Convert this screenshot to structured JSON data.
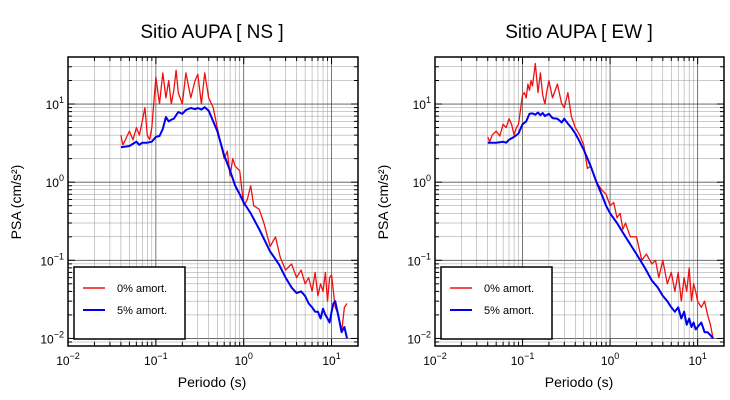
{
  "chart_data": [
    {
      "type": "line",
      "title": "Sitio AUPA [ NS ]",
      "xlabel": "Periodo (s)",
      "ylabel": "PSA (cm/s²)",
      "xscale": "log",
      "yscale": "log",
      "xlim": [
        0.01,
        20
      ],
      "ylim": [
        0.008,
        40
      ],
      "grid": true,
      "legend_placement": "bottom-left",
      "xticks": [
        {
          "base": "10",
          "exp": "−2",
          "value": 0.01
        },
        {
          "base": "10",
          "exp": "−1",
          "value": 0.1
        },
        {
          "base": "10",
          "exp": "0",
          "value": 1
        },
        {
          "base": "10",
          "exp": "1",
          "value": 10
        }
      ],
      "yticks": [
        {
          "base": "10",
          "exp": "−2",
          "value": 0.01
        },
        {
          "base": "10",
          "exp": "−1",
          "value": 0.1
        },
        {
          "base": "10",
          "exp": "0",
          "value": 1
        },
        {
          "base": "10",
          "exp": "1",
          "value": 10
        }
      ],
      "series": [
        {
          "name": "0% amort.",
          "color": "#ee1111",
          "x": [
            0.04,
            0.042,
            0.045,
            0.05,
            0.055,
            0.06,
            0.065,
            0.07,
            0.075,
            0.08,
            0.085,
            0.09,
            0.1,
            0.11,
            0.12,
            0.13,
            0.14,
            0.15,
            0.16,
            0.17,
            0.18,
            0.2,
            0.22,
            0.25,
            0.28,
            0.3,
            0.33,
            0.36,
            0.4,
            0.45,
            0.5,
            0.55,
            0.6,
            0.65,
            0.7,
            0.75,
            0.8,
            0.9,
            1.0,
            1.1,
            1.2,
            1.3,
            1.5,
            1.7,
            2.0,
            2.3,
            2.6,
            3.0,
            3.5,
            4.0,
            4.5,
            5.0,
            5.5,
            6.0,
            6.5,
            7.0,
            7.5,
            8.0,
            8.5,
            9.0,
            9.5,
            10,
            10.5,
            11,
            12,
            13,
            14,
            15
          ],
          "values": [
            4.0,
            3.0,
            3.5,
            4.5,
            3.5,
            5.0,
            4.0,
            6.0,
            9.0,
            4.0,
            3.5,
            5.0,
            22,
            10,
            25,
            12,
            20,
            10,
            15,
            27,
            14,
            10,
            25,
            12,
            20,
            24,
            10,
            25,
            12,
            9.0,
            5.0,
            3.0,
            2.0,
            2.5,
            1.2,
            2.0,
            1.6,
            1.4,
            0.5,
            0.6,
            0.9,
            0.5,
            0.45,
            0.3,
            0.15,
            0.2,
            0.11,
            0.075,
            0.09,
            0.06,
            0.075,
            0.05,
            0.06,
            0.04,
            0.07,
            0.035,
            0.05,
            0.04,
            0.07,
            0.03,
            0.06,
            0.065,
            0.04,
            0.025,
            0.02,
            0.012,
            0.025,
            0.028
          ]
        },
        {
          "name": "5% amort.",
          "color": "#0000ee",
          "x": [
            0.04,
            0.05,
            0.06,
            0.065,
            0.07,
            0.08,
            0.09,
            0.1,
            0.11,
            0.12,
            0.13,
            0.14,
            0.15,
            0.16,
            0.18,
            0.2,
            0.22,
            0.25,
            0.28,
            0.3,
            0.33,
            0.36,
            0.4,
            0.45,
            0.5,
            0.6,
            0.7,
            0.8,
            0.9,
            1.0,
            1.2,
            1.5,
            2.0,
            2.5,
            3.0,
            3.5,
            4.0,
            4.5,
            5.0,
            5.5,
            6.0,
            6.5,
            7.0,
            7.5,
            8.0,
            8.5,
            9.0,
            9.5,
            10,
            10.5,
            11,
            12,
            13,
            14,
            15
          ],
          "values": [
            2.8,
            2.9,
            3.3,
            3.0,
            3.2,
            3.2,
            3.3,
            3.8,
            3.9,
            4.8,
            6.8,
            6.0,
            6.3,
            6.5,
            7.9,
            7.5,
            8.4,
            8.9,
            8.6,
            8.9,
            8.5,
            9.1,
            8.2,
            6.0,
            4.5,
            2.2,
            1.4,
            0.9,
            0.7,
            0.55,
            0.4,
            0.25,
            0.13,
            0.09,
            0.06,
            0.045,
            0.038,
            0.04,
            0.035,
            0.028,
            0.025,
            0.022,
            0.022,
            0.018,
            0.024,
            0.02,
            0.018,
            0.016,
            0.022,
            0.028,
            0.03,
            0.019,
            0.012,
            0.014,
            0.01
          ]
        }
      ]
    },
    {
      "type": "line",
      "title": "Sitio AUPA [ EW ]",
      "xlabel": "Periodo (s)",
      "ylabel": "PSA (cm/s²)",
      "xscale": "log",
      "yscale": "log",
      "xlim": [
        0.01,
        20
      ],
      "ylim": [
        0.008,
        40
      ],
      "grid": true,
      "legend_placement": "bottom-left",
      "xticks": [
        {
          "base": "10",
          "exp": "−2",
          "value": 0.01
        },
        {
          "base": "10",
          "exp": "−1",
          "value": 0.1
        },
        {
          "base": "10",
          "exp": "0",
          "value": 1
        },
        {
          "base": "10",
          "exp": "1",
          "value": 10
        }
      ],
      "yticks": [
        {
          "base": "10",
          "exp": "−2",
          "value": 0.01
        },
        {
          "base": "10",
          "exp": "−1",
          "value": 0.1
        },
        {
          "base": "10",
          "exp": "0",
          "value": 1
        },
        {
          "base": "10",
          "exp": "1",
          "value": 10
        }
      ],
      "series": [
        {
          "name": "0% amort.",
          "color": "#ee1111",
          "x": [
            0.04,
            0.042,
            0.045,
            0.05,
            0.055,
            0.06,
            0.065,
            0.07,
            0.075,
            0.08,
            0.085,
            0.09,
            0.1,
            0.105,
            0.11,
            0.115,
            0.12,
            0.125,
            0.13,
            0.14,
            0.15,
            0.16,
            0.17,
            0.18,
            0.19,
            0.2,
            0.22,
            0.25,
            0.28,
            0.3,
            0.33,
            0.36,
            0.4,
            0.45,
            0.5,
            0.55,
            0.6,
            0.7,
            0.8,
            0.9,
            1.0,
            1.1,
            1.2,
            1.3,
            1.4,
            1.5,
            1.7,
            2.0,
            2.3,
            2.6,
            3.0,
            3.3,
            3.6,
            4.0,
            4.5,
            5.0,
            5.5,
            6.0,
            6.5,
            7.0,
            7.5,
            8.0,
            8.5,
            9.0,
            9.5,
            10,
            11,
            12,
            13,
            14,
            15
          ],
          "values": [
            3.8,
            3.3,
            4.0,
            4.5,
            3.9,
            5.5,
            5.0,
            6.5,
            5.5,
            4.0,
            5.0,
            5.5,
            13,
            14,
            12,
            18,
            15,
            20,
            17,
            33,
            14,
            25,
            13,
            10,
            15,
            20,
            12,
            18,
            10,
            9.0,
            14,
            7.0,
            5.0,
            4.0,
            3.0,
            1.5,
            1.6,
            1.0,
            0.8,
            0.7,
            0.5,
            0.55,
            0.35,
            0.4,
            0.25,
            0.3,
            0.2,
            0.2,
            0.1,
            0.12,
            0.09,
            0.1,
            0.06,
            0.1,
            0.05,
            0.07,
            0.04,
            0.07,
            0.03,
            0.06,
            0.04,
            0.08,
            0.03,
            0.05,
            0.04,
            0.03,
            0.025,
            0.03,
            0.02,
            0.015,
            0.01
          ]
        },
        {
          "name": "5% amort.",
          "color": "#0000ee",
          "x": [
            0.04,
            0.05,
            0.06,
            0.065,
            0.07,
            0.08,
            0.09,
            0.1,
            0.11,
            0.12,
            0.13,
            0.14,
            0.15,
            0.16,
            0.17,
            0.18,
            0.2,
            0.22,
            0.25,
            0.28,
            0.3,
            0.33,
            0.36,
            0.4,
            0.45,
            0.5,
            0.6,
            0.7,
            0.8,
            0.9,
            1.0,
            1.2,
            1.5,
            2.0,
            2.5,
            3.0,
            3.5,
            4.0,
            4.5,
            5.0,
            5.5,
            6.0,
            6.5,
            7.0,
            7.5,
            8.0,
            8.5,
            9.0,
            9.5,
            10,
            11,
            12,
            13,
            14,
            15
          ],
          "values": [
            3.2,
            3.2,
            3.3,
            3.2,
            3.5,
            3.8,
            4.2,
            5.5,
            6.0,
            7.5,
            7.6,
            7.3,
            7.8,
            7.2,
            7.7,
            7.0,
            7.5,
            6.6,
            6.5,
            5.8,
            6.5,
            5.6,
            5.0,
            4.2,
            3.3,
            2.6,
            1.6,
            1.0,
            0.7,
            0.5,
            0.4,
            0.3,
            0.2,
            0.12,
            0.08,
            0.055,
            0.045,
            0.035,
            0.03,
            0.025,
            0.022,
            0.025,
            0.018,
            0.022,
            0.015,
            0.018,
            0.014,
            0.016,
            0.013,
            0.014,
            0.016,
            0.012,
            0.012,
            0.011,
            0.01
          ]
        }
      ]
    }
  ]
}
